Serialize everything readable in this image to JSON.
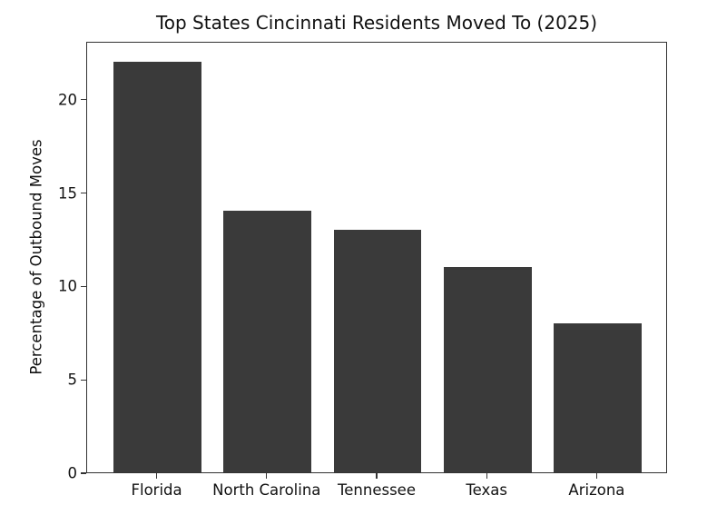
{
  "figure": {
    "background": "#ffffff"
  },
  "colors": {
    "bar": "#3a3a3a",
    "spine": "#333333",
    "text": "#111111",
    "background": "#ffffff"
  },
  "chart_data": {
    "type": "bar",
    "title": "Top States Cincinnati Residents Moved To (2025)",
    "xlabel": "",
    "ylabel": "Percentage of Outbound Moves",
    "categories": [
      "Florida",
      "North Carolina",
      "Tennessee",
      "Texas",
      "Arizona"
    ],
    "values": [
      22,
      14,
      13,
      11,
      8
    ],
    "ylim": [
      0,
      23.1
    ],
    "yticks": [
      0,
      5,
      10,
      15,
      20
    ],
    "bar_color": "#3a3a3a",
    "bar_width_fraction": 0.8,
    "grid": false,
    "legend": "none"
  }
}
